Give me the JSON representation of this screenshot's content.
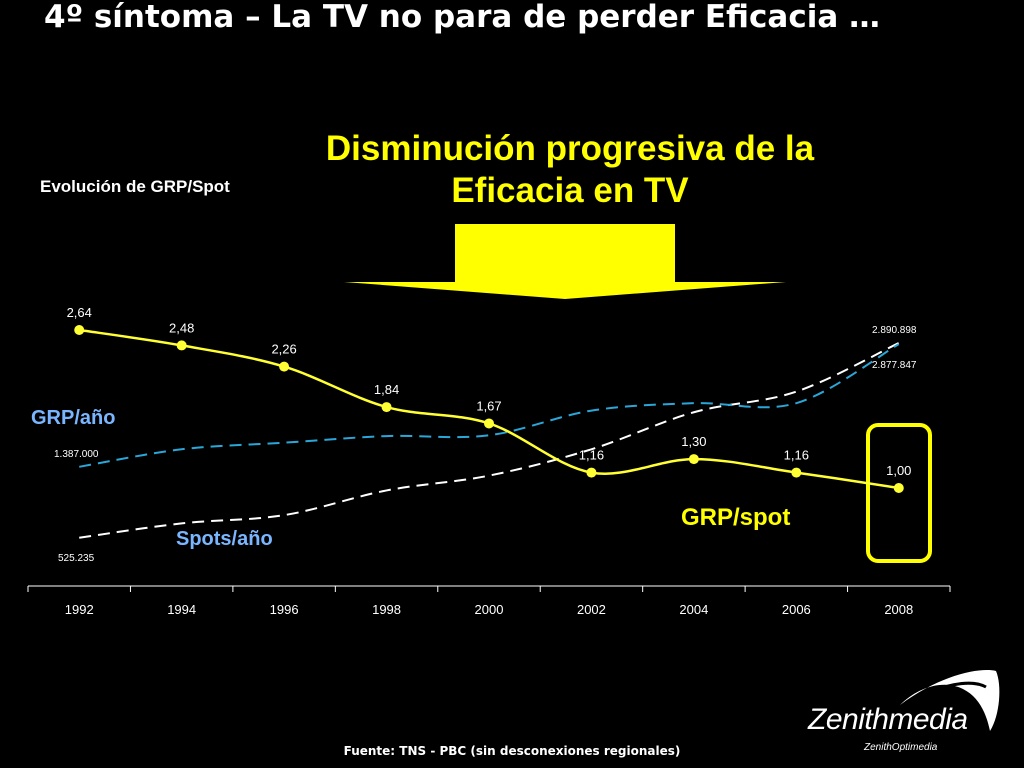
{
  "slide": {
    "title": "4º síntoma – La TV no para de perder Eficacia …",
    "headline": "Disminución progresiva de la Eficacia en TV",
    "source": "Fuente: TNS - PBC (sin desconexiones regionales)",
    "logo": {
      "main": "Zenithmedia",
      "sub": "ZenithOptimedia"
    }
  },
  "colors": {
    "background": "#000000",
    "grp_spot_line": "#ffff33",
    "grp_year_line": "#2aa7d8",
    "spots_year_line": "#ffffff",
    "highlight": "#ffff00",
    "grp_year_label": "#7ab6ff",
    "spots_year_label": "#7ab6ff"
  },
  "chart_data": {
    "type": "line",
    "subtitle": "Evolución de GRP/Spot",
    "categories": [
      "1992",
      "1994",
      "1996",
      "1998",
      "2000",
      "2002",
      "2004",
      "2006",
      "2008"
    ],
    "series": [
      {
        "name": "GRP/spot",
        "style": "solid with markers",
        "values": [
          2.64,
          2.48,
          2.26,
          1.84,
          1.67,
          1.16,
          1.3,
          1.16,
          1.0
        ],
        "labels": [
          "2,64",
          "2,48",
          "2,26",
          "1,84",
          "1,67",
          "1,16",
          "1,30",
          "1,16",
          "1,00"
        ]
      },
      {
        "name": "GRP/año",
        "style": "dashed",
        "values": [
          1387000,
          1600000,
          1680000,
          1760000,
          1770000,
          2070000,
          2160000,
          2160000,
          2877847
        ],
        "start_label": "1.387.000",
        "end_label": "2.877.847"
      },
      {
        "name": "Spots/año",
        "style": "dashed",
        "values": [
          525235,
          700000,
          800000,
          1100000,
          1280000,
          1600000,
          2050000,
          2300000,
          2890898
        ],
        "start_label": "525.235",
        "end_label": "2.890.898"
      }
    ],
    "highlight": {
      "category": "2008"
    },
    "legend": "inline labels"
  }
}
